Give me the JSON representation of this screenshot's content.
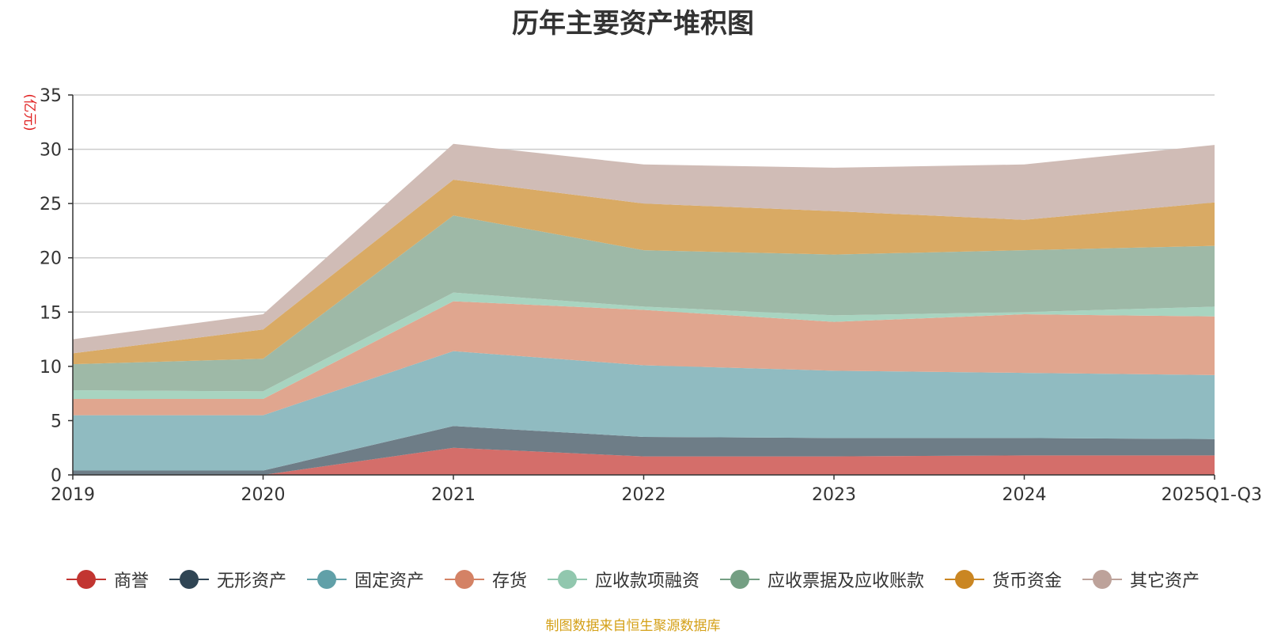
{
  "chart_data": {
    "type": "area",
    "stacked": true,
    "title": "历年主要资产堆积图",
    "unit_label": "(亿元)",
    "source": "制图数据来自恒生聚源数据库",
    "categories": [
      "2019",
      "2020",
      "2021",
      "2022",
      "2023",
      "2024",
      "2025Q1-Q3"
    ],
    "ylim": [
      0,
      35
    ],
    "yticks": [
      0,
      5,
      10,
      15,
      20,
      25,
      30,
      35
    ],
    "grid": true,
    "legend_position": "bottom",
    "series": [
      {
        "name": "商誉",
        "color": "#c23531",
        "fill": "#d46e6a",
        "values": [
          0.0,
          0.0,
          2.5,
          1.7,
          1.7,
          1.8,
          1.8
        ]
      },
      {
        "name": "无形资产",
        "color": "#2f4554",
        "fill": "#6e7d87",
        "values": [
          0.4,
          0.4,
          2.0,
          1.8,
          1.7,
          1.6,
          1.5
        ]
      },
      {
        "name": "固定资产",
        "color": "#61a0a8",
        "fill": "#90bbc1",
        "values": [
          5.1,
          5.1,
          6.9,
          6.6,
          6.2,
          6.0,
          5.9
        ]
      },
      {
        "name": "存货",
        "color": "#d48265",
        "fill": "#e0a68f",
        "values": [
          1.5,
          1.5,
          4.6,
          5.1,
          4.5,
          5.4,
          5.4
        ]
      },
      {
        "name": "应收款项融资",
        "color": "#91c7ae",
        "fill": "#a8d4c0",
        "values": [
          0.8,
          0.7,
          0.8,
          0.3,
          0.6,
          0.2,
          0.9
        ]
      },
      {
        "name": "应收票据及应收账款",
        "color": "#749f83",
        "fill": "#9eb9a7",
        "values": [
          2.4,
          3.0,
          7.1,
          5.2,
          5.6,
          5.7,
          5.6
        ]
      },
      {
        "name": "货币资金",
        "color": "#ca8622",
        "fill": "#d9aa64",
        "values": [
          1.0,
          2.7,
          3.3,
          4.3,
          4.0,
          2.8,
          4.0
        ]
      },
      {
        "name": "其它资产",
        "color": "#bda29a",
        "fill": "#d0bcb6",
        "values": [
          1.3,
          1.4,
          3.3,
          3.6,
          4.0,
          5.1,
          5.3
        ]
      }
    ]
  }
}
